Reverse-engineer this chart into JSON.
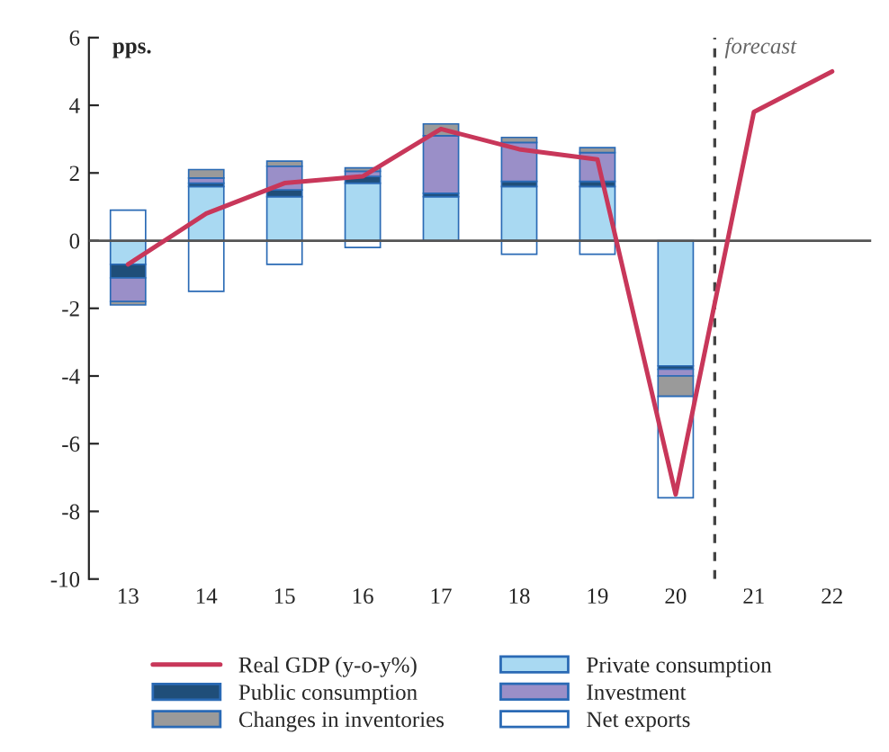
{
  "chart_data": {
    "type": "bar",
    "stacked": true,
    "ylabel": "pps.",
    "x": [
      13,
      14,
      15,
      16,
      17,
      18,
      19,
      20,
      21,
      22
    ],
    "xlim": [
      12.5,
      22.5
    ],
    "xticks": [
      13,
      14,
      15,
      16,
      17,
      18,
      19,
      20,
      21,
      22
    ],
    "ylim": [
      -10,
      6
    ],
    "yticks": [
      -10,
      -8,
      -6,
      -4,
      -2,
      0,
      2,
      4,
      6
    ],
    "series": [
      {
        "name": "Private consumption",
        "color": "#a9d9f2",
        "values": [
          -0.7,
          1.6,
          1.3,
          1.7,
          1.3,
          1.6,
          1.6,
          -3.7,
          null,
          null
        ]
      },
      {
        "name": "Public consumption",
        "color": "#1f4e79",
        "values": [
          -0.4,
          0.1,
          0.2,
          0.2,
          0.1,
          0.15,
          0.15,
          -0.1,
          null,
          null
        ]
      },
      {
        "name": "Investment",
        "color": "#9a8fc8",
        "values": [
          -0.7,
          0.15,
          0.7,
          0.15,
          1.7,
          1.15,
          0.85,
          -0.2,
          null,
          null
        ]
      },
      {
        "name": "Changes in inventories",
        "color": "#9a9a9a",
        "values": [
          -0.1,
          0.25,
          0.15,
          0.1,
          0.35,
          0.15,
          0.15,
          -0.6,
          null,
          null
        ]
      },
      {
        "name": "Net exports",
        "color": "#ffffff",
        "values": [
          0.9,
          -1.5,
          -0.7,
          -0.2,
          null,
          -0.4,
          -0.4,
          -3.0,
          null,
          null
        ]
      },
      {
        "name": "Real GDP (y-o-y%)",
        "type": "line",
        "color": "#c8375a",
        "values": [
          -0.7,
          0.8,
          1.7,
          1.9,
          3.3,
          2.7,
          2.4,
          -7.5,
          3.8,
          5.0
        ]
      }
    ],
    "ref_lines": [
      {
        "axis": "x",
        "value": 20.5,
        "label": "forecast",
        "line_style": "dashed",
        "color": "#444444"
      },
      {
        "axis": "y",
        "value": 0,
        "color": "#555555"
      }
    ],
    "legend": "bottom",
    "grid": false
  }
}
